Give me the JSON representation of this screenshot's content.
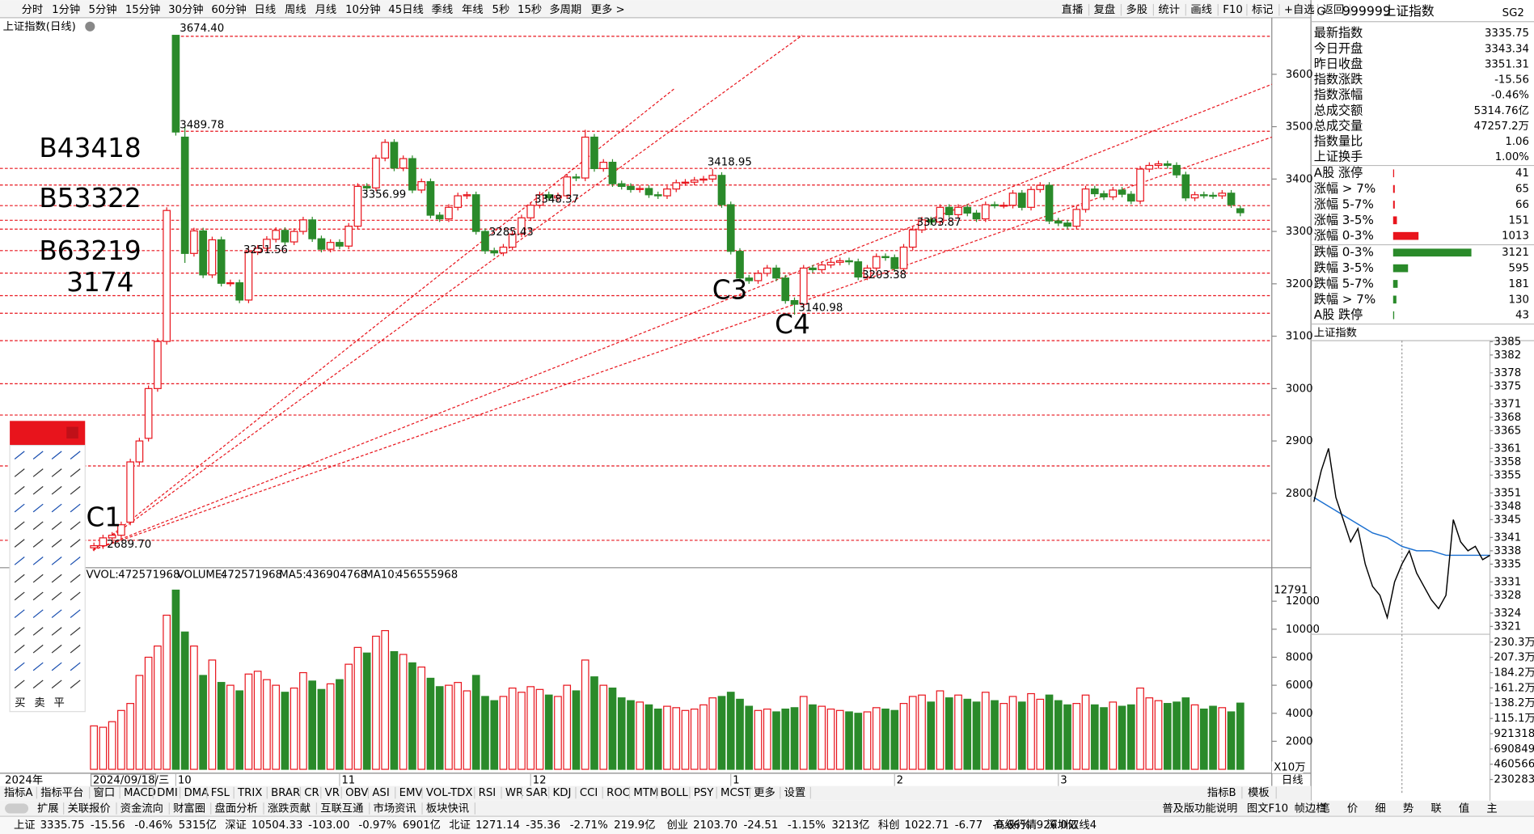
{
  "top_toolbar": {
    "left": [
      "分时",
      "1分钟",
      "5分钟",
      "15分钟",
      "30分钟",
      "60分钟",
      "日线",
      "周线",
      "月线",
      "10分钟",
      "45日线",
      "季线",
      "年线",
      "5秒",
      "15秒",
      "多周期",
      "更多 >"
    ],
    "active": 6,
    "right": [
      "直播",
      "复盘",
      "多股",
      "统计",
      "画线",
      "F10",
      "标记",
      "+自选",
      "返回"
    ]
  },
  "chart_data": {
    "type": "candlestick",
    "title": "上证指数(日线)",
    "open": [
      2696,
      2700,
      2715,
      2720,
      2745,
      2860,
      2905,
      3000,
      3090,
      3674.4,
      3480,
      3258,
      3301,
      3217,
      3284,
      3201,
      3202,
      3169,
      3261,
      3268,
      3285,
      3302,
      3280,
      3300,
      3322,
      3286,
      3266,
      3279,
      3272,
      3310,
      3386,
      3383,
      3440,
      3470,
      3421,
      3439,
      3379,
      3395,
      3331,
      3324,
      3346,
      3368,
      3370,
      3300,
      3263,
      3259,
      3270,
      3295,
      3326,
      3350,
      3370,
      3364,
      3368,
      3404,
      3402,
      3480,
      3420,
      3432,
      3391,
      3386,
      3380,
      3382,
      3370,
      3368,
      3381,
      3393,
      3394,
      3398,
      3400,
      3407,
      3351,
      3262,
      3211,
      3206,
      3220,
      3230,
      3211,
      3168,
      3161,
      3230,
      3227,
      3236,
      3241,
      3244,
      3242,
      3213,
      3230,
      3252,
      3250,
      3229,
      3270,
      3303,
      3322,
      3318,
      3346,
      3332,
      3346,
      3335,
      3324,
      3351,
      3350,
      3350,
      3373,
      3346,
      3380,
      3388,
      3320,
      3316,
      3310,
      3342,
      3381,
      3372,
      3366,
      3379,
      3371,
      3358,
      3419,
      3426,
      3429,
      3426,
      3408,
      3364,
      3370,
      3369,
      3368,
      3373,
      3343.34
    ],
    "high": [
      2706,
      2721,
      2726,
      2746,
      2866,
      2906,
      3006,
      3096,
      3346,
      3674.4,
      3500,
      3307,
      3307,
      3290,
      3290,
      3208,
      3208,
      3267,
      3274,
      3291,
      3308,
      3308,
      3306,
      3328,
      3328,
      3292,
      3285,
      3285,
      3316,
      3392,
      3392,
      3446,
      3476,
      3476,
      3445,
      3445,
      3401,
      3401,
      3337,
      3352,
      3374,
      3376,
      3376,
      3306,
      3269,
      3276,
      3301,
      3332,
      3356,
      3376,
      3376,
      3374,
      3410,
      3410,
      3494,
      3486,
      3438,
      3438,
      3397,
      3392,
      3388,
      3388,
      3376,
      3387,
      3399,
      3400,
      3404,
      3406,
      3418.95,
      3413,
      3357,
      3268,
      3217,
      3226,
      3236,
      3236,
      3217,
      3174,
      3236,
      3236,
      3242,
      3247,
      3250,
      3250,
      3248,
      3236,
      3258,
      3258,
      3256,
      3276,
      3309,
      3328,
      3328,
      3352,
      3352,
      3352,
      3352,
      3341,
      3357,
      3357,
      3356,
      3379,
      3379,
      3386,
      3394,
      3394,
      3326,
      3322,
      3348,
      3387,
      3387,
      3378,
      3385,
      3385,
      3377,
      3425,
      3432,
      3435,
      3435,
      3432,
      3414,
      3376,
      3376,
      3375,
      3379,
      3379,
      3349
    ],
    "low": [
      2689.7,
      2694,
      2709,
      2714,
      2739,
      2854,
      2899,
      2994,
      3084,
      3483,
      3240,
      3252,
      3211,
      3211,
      3195,
      3195,
      3163,
      3163,
      3255,
      3262,
      3279,
      3274,
      3274,
      3294,
      3280,
      3260,
      3260,
      3266,
      3266,
      3304,
      3377,
      3377,
      3434,
      3415,
      3415,
      3373,
      3373,
      3325,
      3318,
      3318,
      3340,
      3362,
      3294,
      3257,
      3253,
      3253,
      3264,
      3289,
      3320,
      3344,
      3358,
      3358,
      3362,
      3396,
      3396,
      3414,
      3414,
      3385,
      3380,
      3374,
      3374,
      3364,
      3362,
      3362,
      3375,
      3387,
      3388,
      3392,
      3394,
      3345,
      3256,
      3205,
      3200,
      3200,
      3214,
      3205,
      3162,
      3140.98,
      3155,
      3221,
      3221,
      3230,
      3235,
      3236,
      3207,
      3207,
      3224,
      3244,
      3223,
      3223,
      3264,
      3297,
      3312,
      3312,
      3326,
      3326,
      3329,
      3318,
      3318,
      3344,
      3344,
      3344,
      3340,
      3340,
      3374,
      3314,
      3310,
      3304,
      3304,
      3336,
      3366,
      3360,
      3360,
      3365,
      3352,
      3352,
      3413,
      3420,
      3420,
      3402,
      3358,
      3358,
      3363,
      3362,
      3362,
      3345,
      3329
    ],
    "close": [
      2700,
      2715,
      2720,
      2740,
      2860,
      2900,
      3000,
      3090,
      3340,
      3489.78,
      3258,
      3301,
      3217,
      3284,
      3201,
      3202,
      3169,
      3261,
      3268,
      3285,
      3302,
      3280,
      3300,
      3322,
      3286,
      3266,
      3279,
      3272,
      3310,
      3386,
      3383,
      3440,
      3470,
      3421,
      3439,
      3379,
      3395,
      3331,
      3324,
      3346,
      3368,
      3370,
      3300,
      3263,
      3259,
      3270,
      3295,
      3326,
      3350,
      3370,
      3364,
      3368,
      3404,
      3402,
      3480,
      3420,
      3432,
      3391,
      3386,
      3380,
      3382,
      3370,
      3368,
      3381,
      3393,
      3394,
      3398,
      3400,
      3407,
      3351,
      3262,
      3211,
      3206,
      3220,
      3230,
      3211,
      3168,
      3161,
      3230,
      3227,
      3236,
      3241,
      3244,
      3242,
      3213,
      3230,
      3252,
      3250,
      3229,
      3270,
      3303,
      3322,
      3318,
      3346,
      3332,
      3346,
      3335,
      3324,
      3351,
      3350,
      3350,
      3373,
      3346,
      3380,
      3388,
      3320,
      3316,
      3310,
      3342,
      3381,
      3372,
      3366,
      3379,
      3371,
      3358,
      3419,
      3426,
      3429,
      3426,
      3408,
      3364,
      3370,
      3369,
      3368,
      3373,
      3351,
      3335.75
    ],
    "ylim": [
      2658,
      3708
    ],
    "yticks": [
      3600,
      3500,
      3400,
      3300,
      3200,
      3100,
      3000,
      2900,
      2800
    ],
    "xticks": [
      {
        "value": 9,
        "label": "10"
      },
      {
        "value": 27,
        "label": "11"
      },
      {
        "value": 48,
        "label": "12"
      },
      {
        "value": 70,
        "label": "1"
      },
      {
        "value": 88,
        "label": "2"
      },
      {
        "value": 106,
        "label": "3"
      }
    ],
    "x_start_label": "2024年",
    "cursor_date": "2024/09/18/三",
    "period_label": "日线",
    "price_labels": [
      {
        "x": 9,
        "value": 3674.4,
        "label": "3674.40"
      },
      {
        "x": 9,
        "value": 3489.78,
        "label": "3489.78"
      },
      {
        "x": 29,
        "value": 3356.99,
        "label": "3356.99"
      },
      {
        "x": 16,
        "value": 3251.56,
        "label": "3251.56"
      },
      {
        "x": 43,
        "value": 3285.43,
        "label": "3285.43"
      },
      {
        "x": 48,
        "value": 3348.37,
        "label": "3348.37"
      },
      {
        "x": 67,
        "value": 3418.95,
        "label": "3418.95"
      },
      {
        "x": 77,
        "value": 3140.98,
        "label": "3140.98"
      },
      {
        "x": 84,
        "value": 3203.38,
        "label": "3203.38"
      },
      {
        "x": 90,
        "value": 3303.87,
        "label": "3303.87"
      },
      {
        "x": 1,
        "value": 2689.7,
        "label": "2689.70"
      }
    ],
    "annotations": [
      "B43418",
      "B53322",
      "B63219",
      "3174",
      "C1",
      "C3",
      "C4"
    ],
    "up_color": "#e8141c",
    "down_color": "#2a8a2a",
    "volume": {
      "values": [
        3100,
        3000,
        3400,
        4200,
        4700,
        6700,
        8000,
        8800,
        11000,
        12791,
        9800,
        8800,
        6700,
        7800,
        6200,
        6000,
        5600,
        6800,
        7000,
        6400,
        6000,
        5500,
        5800,
        6900,
        6300,
        5700,
        6100,
        6400,
        7500,
        8700,
        8300,
        9500,
        9900,
        8400,
        8200,
        7600,
        7300,
        6500,
        5900,
        6000,
        6200,
        5600,
        6700,
        5200,
        4900,
        5200,
        5800,
        5500,
        5900,
        5700,
        5300,
        5200,
        6000,
        5600,
        7800,
        6600,
        6000,
        5800,
        5100,
        4900,
        4800,
        4600,
        4300,
        4500,
        4400,
        4200,
        4300,
        4600,
        5100,
        5200,
        5500,
        5000,
        4500,
        4200,
        4300,
        4100,
        4300,
        4400,
        5200,
        4600,
        4500,
        4300,
        4200,
        4100,
        4000,
        4100,
        4400,
        4300,
        4200,
        4700,
        5200,
        5300,
        4800,
        5600,
        5100,
        5300,
        5000,
        4800,
        5500,
        4900,
        4700,
        5200,
        4800,
        5400,
        5000,
        5300,
        4900,
        4600,
        4700,
        5300,
        4600,
        4400,
        4800,
        4500,
        4600,
        5800,
        5100,
        4900,
        4700,
        4800,
        5100,
        4600,
        4300,
        4500,
        4400,
        4100,
        4726
      ],
      "ylim": [
        0,
        14250
      ],
      "yticks": [
        12000,
        10000,
        8000,
        6000,
        4000,
        2000
      ],
      "max_label": 12791,
      "unit": "X10万",
      "legend": [
        {
          "name": "VVOL:",
          "value": 472571968,
          "color": "#000000"
        },
        {
          "name": "VOLUME:",
          "value": 472571968,
          "color": "#1a5fd0"
        },
        {
          "name": "MA5:",
          "value": 436904768,
          "color": "#c800c8"
        },
        {
          "name": "MA10:",
          "value": 456555968,
          "color": "#7a2a9a"
        }
      ]
    }
  },
  "quote": {
    "flag": "G",
    "code": "999999",
    "name": "上证指数",
    "tag": "SG2",
    "rows": [
      {
        "label": "最新指数",
        "value": "3335.75",
        "color": "#1f8a1f"
      },
      {
        "label": "今日开盘",
        "value": "3343.34",
        "color": "#1f8a1f"
      },
      {
        "label": "昨日收盘",
        "value": "3351.31",
        "color": "#000000"
      },
      {
        "label": "指数涨跌",
        "value": "-15.56",
        "color": "#1f8a1f"
      },
      {
        "label": "指数涨幅",
        "value": "-0.46%",
        "color": "#1f8a1f"
      },
      {
        "label": "总成交额",
        "value": "5314.76亿",
        "color": "#000000"
      },
      {
        "label": "总成交量",
        "value": "47257.2万",
        "color": "#000000"
      },
      {
        "label": "指数量比",
        "value": "1.06",
        "color": "#e8141c"
      },
      {
        "label": "上证换手",
        "value": "1.00%",
        "color": "#000000"
      }
    ]
  },
  "breadth": {
    "up_color": "#e8141c",
    "down_color": "#2a8a2a",
    "up": [
      {
        "label": "A股 涨停",
        "value": 41
      },
      {
        "label": "涨幅 > 7%",
        "value": 65
      },
      {
        "label": "涨幅 5-7%",
        "value": 66
      },
      {
        "label": "涨幅 3-5%",
        "value": 151
      },
      {
        "label": "涨幅 0-3%",
        "value": 1013
      }
    ],
    "down": [
      {
        "label": "跌幅 0-3%",
        "value": 3121
      },
      {
        "label": "跌幅 3-5%",
        "value": 595
      },
      {
        "label": "跌幅 5-7%",
        "value": 181
      },
      {
        "label": "跌幅 > 7%",
        "value": 130
      },
      {
        "label": "A股 跌停",
        "value": 43
      }
    ]
  },
  "intraday": {
    "title": "上证指数",
    "prices": [
      3349,
      3356,
      3361,
      3350,
      3345,
      3340,
      3343,
      3335,
      3330,
      3328,
      3323,
      3331,
      3335,
      3338,
      3333,
      3330,
      3327,
      3325,
      3328,
      3345,
      3340,
      3338,
      3339,
      3336,
      3337
    ],
    "avg": [
      3350,
      3348,
      3346,
      3344,
      3342,
      3341,
      3339,
      3338,
      3338,
      3337,
      3337,
      3337,
      3337
    ],
    "price_color": "#000000",
    "avg_color": "#1a6fd0",
    "ylim": [
      3321,
      3385
    ],
    "yticks": [
      3385,
      3382,
      3378,
      3375,
      3371,
      3368,
      3365,
      3361,
      3358,
      3355,
      3351,
      3348,
      3345,
      3341,
      3338,
      3335,
      3331,
      3328,
      3324,
      3321
    ],
    "volume_ylim": [
      0,
      2303000
    ],
    "volume_yticks": [
      {
        "value": 2303000,
        "label": "230.3万"
      },
      {
        "value": 2073000,
        "label": "207.3万"
      },
      {
        "value": 1842000,
        "label": "184.2万"
      },
      {
        "value": 1612000,
        "label": "161.2万"
      },
      {
        "value": 1382000,
        "label": "138.2万"
      },
      {
        "value": 1151000,
        "label": "115.1万"
      },
      921318,
      690849,
      460566,
      230283
    ]
  },
  "side_tabs": {
    "items": [
      "笔",
      "价",
      "细",
      "势",
      "联",
      "值",
      "主"
    ],
    "active": 3
  },
  "indicator_tabs": {
    "left": [
      "指标A",
      "指标平台",
      "窗口",
      "MACD",
      "DMI",
      "DMA",
      "FSL",
      "TRIX",
      "BRAR",
      "CR",
      "VR",
      "OBV",
      "ASI",
      "EMV",
      "VOL-TDX",
      "RSI",
      "WR",
      "SAR",
      "KDJ",
      "CCI",
      "ROC",
      "MTM",
      "BOLL",
      "PSY",
      "MCST",
      "更多",
      "设置"
    ],
    "active": 14,
    "right": [
      "指标B",
      "模板"
    ]
  },
  "info_tabs": {
    "left": [
      "扩展",
      "关联报价",
      "资金流向",
      "财富圈",
      "盘面分析",
      "涨跌贡献",
      "互联互通",
      "市场资讯",
      "板块快讯"
    ],
    "highlighted": [
      5,
      6
    ],
    "right": [
      "普及版功能说明",
      "图文F10",
      "帧边栏"
    ]
  },
  "status_bar": {
    "markets": [
      {
        "name": "上证",
        "items": [
          "3335.75",
          "-15.56",
          "-0.46%",
          "5315亿"
        ]
      },
      {
        "name": "深证",
        "items": [
          "10504.33",
          "-103.00",
          "-0.97%",
          "6901亿"
        ]
      },
      {
        "name": "北证",
        "items": [
          "1271.14",
          "-35.36",
          "-2.71%",
          "219.9亿"
        ]
      },
      {
        "name": "创业",
        "items": [
          "2103.70",
          "-24.51",
          "-1.15%",
          "3213亿"
        ]
      },
      {
        "name": "科创",
        "items": [
          "1022.71",
          "-6.77",
          "-0.66%",
          "926.0亿"
        ]
      }
    ],
    "right": [
      "高级行情",
      "深圳双线4"
    ]
  },
  "draw_tools": {
    "labels": [
      "买",
      "卖",
      "平"
    ]
  }
}
